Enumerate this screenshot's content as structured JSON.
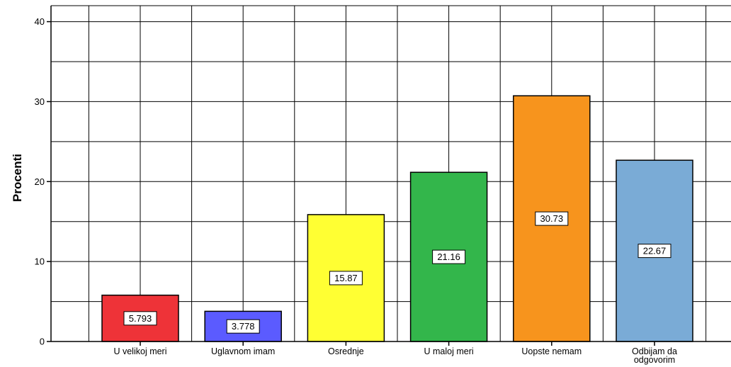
{
  "chart_data": {
    "type": "bar",
    "title": "",
    "xlabel": "",
    "ylabel": "Procenti",
    "ylim": [
      0,
      42
    ],
    "yticks": [
      0,
      10,
      20,
      30,
      40
    ],
    "grid": true,
    "categories": [
      [
        "U velikoj meri"
      ],
      [
        "Uglavnom imam"
      ],
      [
        "Osrednje"
      ],
      [
        "U maloj meri"
      ],
      [
        "Uopste nemam"
      ],
      [
        "Odbijam da",
        "odgovorim"
      ]
    ],
    "values": [
      5.793,
      3.778,
      15.87,
      21.16,
      30.73,
      22.67
    ],
    "data_labels": [
      "5.793",
      "3.778",
      "15.87",
      "21.16",
      "30.73",
      "22.67"
    ],
    "colors": [
      "#ee3338",
      "#5b5bff",
      "#ffff33",
      "#33b64b",
      "#f7941d",
      "#7aabd6"
    ]
  }
}
